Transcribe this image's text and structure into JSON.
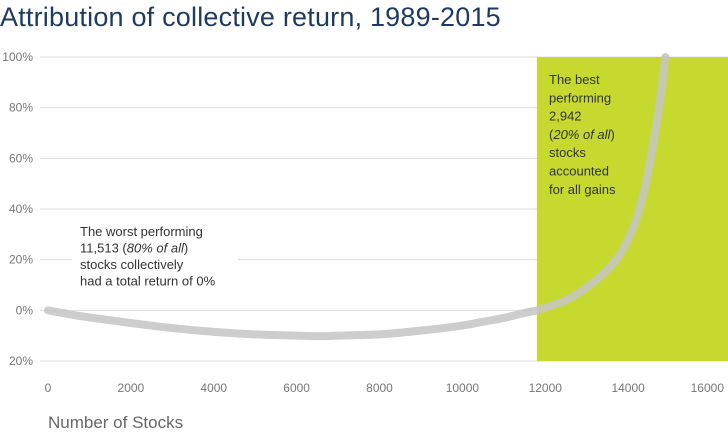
{
  "chart_data": {
    "type": "line",
    "title": "Attribution of collective return, 1989-2015",
    "xlabel": "Number of Stocks",
    "ylabel": "",
    "xlim": [
      0,
      16000
    ],
    "ylim": [
      -20,
      100
    ],
    "x_ticks": [
      0,
      2000,
      4000,
      6000,
      8000,
      10000,
      12000,
      14000,
      16000
    ],
    "x_tick_labels": [
      "0",
      "2000",
      "4000",
      "6000",
      "8000",
      "10000",
      "12000",
      "14000",
      "16000"
    ],
    "y_ticks": [
      100,
      80,
      60,
      40,
      20,
      0,
      -20
    ],
    "y_tick_labels": [
      "100%",
      "80%",
      "60%",
      "40%",
      "20%",
      "0%",
      "20%"
    ],
    "grid": "horizontal",
    "legend": "none",
    "colors": {
      "title": "#1f3a5f",
      "line": "#c4c4c4",
      "highlight": "#c7d92e",
      "grid": "#dddddd",
      "text": "#333333"
    },
    "highlight_region": {
      "x_start": 11800,
      "x_end": 16000
    },
    "series": [
      {
        "x": [
          0,
          500,
          1000,
          2000,
          3000,
          4000,
          5000,
          6000,
          6600,
          7000,
          8000,
          9000,
          10000,
          10500,
          11000,
          11500,
          11800,
          12000,
          12500,
          13000,
          13500,
          13800,
          14000,
          14200,
          14400,
          14500,
          14600,
          14700,
          14800,
          14850,
          14900
        ],
        "y": [
          0,
          -1.5,
          -2.8,
          -5,
          -7,
          -8.5,
          -9.5,
          -10,
          -10.2,
          -10,
          -9.5,
          -8,
          -6,
          -4.5,
          -3,
          -1,
          0,
          1,
          4,
          9,
          16,
          22,
          28,
          36,
          48,
          56,
          65,
          75,
          86,
          93,
          100
        ]
      }
    ],
    "annotations": [
      {
        "lines": [
          [
            {
              "text": "The worst performing",
              "italic": false
            }
          ],
          [
            {
              "text": "11,513 (",
              "italic": false
            },
            {
              "text": "80% of all",
              "italic": true
            },
            {
              "text": ")",
              "italic": false
            }
          ],
          [
            {
              "text": "stocks collectively",
              "italic": false
            }
          ],
          [
            {
              "text": "had a total return of 0%",
              "italic": false
            }
          ]
        ]
      },
      {
        "lines": [
          [
            {
              "text": "The best",
              "italic": false
            }
          ],
          [
            {
              "text": "performing",
              "italic": false
            }
          ],
          [
            {
              "text": "2,942",
              "italic": false
            }
          ],
          [
            {
              "text": "(",
              "italic": false
            },
            {
              "text": "20% of all",
              "italic": true
            },
            {
              "text": ")",
              "italic": false
            }
          ],
          [
            {
              "text": "stocks",
              "italic": false
            }
          ],
          [
            {
              "text": "accounted",
              "italic": false
            }
          ],
          [
            {
              "text": "for all gains",
              "italic": false
            }
          ]
        ]
      }
    ]
  }
}
